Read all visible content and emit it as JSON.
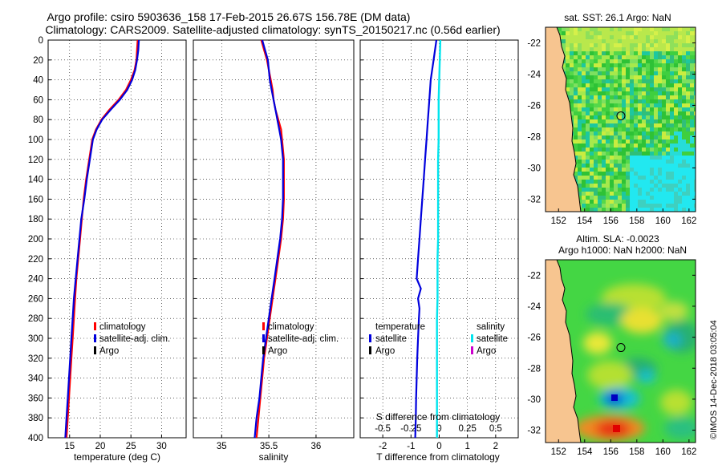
{
  "header": {
    "title_line1": "Argo profile: csiro 5903636_158 17-Feb-2015 26.67S 156.78E (DM data)",
    "title_line2": "Climatology: CARS2009. Satellite-adjusted climatology: synTS_20150217.nc (0.56d earlier)"
  },
  "watermark": "©IMOS 14-Dec-2018 03:05:04",
  "colors": {
    "climatology": "#ff0000",
    "satellite_adj": "#0000dd",
    "argo": "#000000",
    "salinity_satellite": "#00e5ee",
    "salinity_argo": "#cc00cc",
    "land": "#f7c590",
    "coast": "#000000"
  },
  "chart_data": [
    {
      "type": "line",
      "id": "temperature",
      "xlabel": "temperature (deg C)",
      "ylabel": "",
      "xlim": [
        11.5,
        34
      ],
      "ylim": [
        400,
        0
      ],
      "xticks": [
        15,
        20,
        25,
        30
      ],
      "yticks": [
        0,
        20,
        40,
        60,
        80,
        100,
        120,
        140,
        160,
        180,
        200,
        220,
        240,
        260,
        280,
        300,
        320,
        340,
        360,
        380,
        400
      ],
      "legend": [
        "climatology",
        "satellite-adj. clim.",
        "Argo"
      ],
      "legend_location": "right-middle",
      "series": [
        {
          "name": "climatology",
          "depth": [
            0,
            10,
            20,
            30,
            40,
            50,
            60,
            70,
            80,
            90,
            100,
            120,
            140,
            160,
            180,
            200,
            220,
            240,
            260,
            280,
            300,
            320,
            340,
            360,
            380,
            400
          ],
          "values": [
            26.1,
            26.0,
            25.9,
            25.6,
            25.0,
            24.2,
            23.0,
            21.5,
            20.2,
            19.3,
            18.7,
            18.2,
            17.7,
            17.3,
            17.0,
            16.7,
            16.4,
            16.1,
            15.9,
            15.7,
            15.5,
            15.3,
            15.1,
            14.9,
            14.7,
            14.5
          ]
        },
        {
          "name": "satellite-adj. clim.",
          "depth": [
            0,
            10,
            20,
            30,
            40,
            50,
            60,
            70,
            80,
            90,
            100,
            120,
            140,
            160,
            180,
            200,
            220,
            240,
            260,
            280,
            300,
            320,
            340,
            360,
            380,
            400
          ],
          "values": [
            26.3,
            26.2,
            26.0,
            25.7,
            25.2,
            24.4,
            23.2,
            21.7,
            20.3,
            19.4,
            18.8,
            18.3,
            17.8,
            17.4,
            16.9,
            16.6,
            16.3,
            16.0,
            15.7,
            15.5,
            15.3,
            15.1,
            14.9,
            14.7,
            14.5,
            14.3
          ]
        },
        {
          "name": "Argo",
          "depth": [],
          "values": []
        }
      ]
    },
    {
      "type": "line",
      "id": "salinity",
      "xlabel": "salinity",
      "ylabel": "",
      "xlim": [
        34.7,
        36.4
      ],
      "ylim": [
        400,
        0
      ],
      "xticks": [
        35,
        35.5,
        36
      ],
      "legend": [
        "climatology",
        "satellite-adj. clim.",
        "Argo"
      ],
      "legend_location": "right-middle",
      "series": [
        {
          "name": "climatology",
          "depth": [
            0,
            10,
            20,
            30,
            40,
            50,
            60,
            70,
            80,
            90,
            100,
            120,
            140,
            160,
            180,
            200,
            220,
            240,
            260,
            280,
            300,
            320,
            340,
            360,
            380,
            400
          ],
          "values": [
            35.42,
            35.45,
            35.48,
            35.5,
            35.52,
            35.54,
            35.55,
            35.57,
            35.6,
            35.63,
            35.64,
            35.66,
            35.66,
            35.66,
            35.65,
            35.63,
            35.6,
            35.57,
            35.54,
            35.51,
            35.48,
            35.45,
            35.43,
            35.41,
            35.39,
            35.37
          ]
        },
        {
          "name": "satellite-adj. clim.",
          "depth": [
            0,
            10,
            20,
            30,
            40,
            50,
            60,
            70,
            80,
            90,
            100,
            120,
            140,
            160,
            180,
            200,
            220,
            240,
            260,
            280,
            300,
            320,
            340,
            360,
            380,
            400
          ],
          "values": [
            35.43,
            35.46,
            35.49,
            35.5,
            35.51,
            35.53,
            35.55,
            35.57,
            35.59,
            35.61,
            35.63,
            35.65,
            35.65,
            35.65,
            35.64,
            35.62,
            35.59,
            35.56,
            35.53,
            35.5,
            35.47,
            35.44,
            35.42,
            35.4,
            35.37,
            35.35
          ]
        },
        {
          "name": "Argo",
          "depth": [],
          "values": []
        }
      ]
    },
    {
      "type": "line",
      "id": "difference",
      "xlabel": "T difference from climatology",
      "xlabel_top": "S difference from climatology",
      "xlim": [
        -2.8,
        2.8
      ],
      "ylim": [
        400,
        0
      ],
      "xticks": [
        -2,
        -1,
        0,
        1,
        2
      ],
      "xticks_s": [
        "-0.5",
        "-0.25",
        "0",
        "0.25",
        "0.5"
      ],
      "xticks_s_values": [
        -0.5,
        -0.25,
        0,
        0.25,
        0.5
      ],
      "legend_temperature_title": "temperature",
      "legend_salinity_title": "salinity",
      "legend_temperature": [
        "satellite",
        "Argo"
      ],
      "legend_salinity": [
        "satellite",
        "Argo"
      ],
      "series": [
        {
          "name": "T satellite",
          "depth": [
            0,
            20,
            40,
            60,
            80,
            100,
            120,
            140,
            160,
            180,
            200,
            220,
            240,
            250,
            260,
            270,
            280,
            300,
            320,
            340,
            360,
            380,
            400
          ],
          "values": [
            -0.1,
            -0.2,
            -0.3,
            -0.35,
            -0.4,
            -0.45,
            -0.5,
            -0.55,
            -0.6,
            -0.65,
            -0.7,
            -0.75,
            -0.8,
            -0.65,
            -0.75,
            -0.7,
            -0.72,
            -0.75,
            -0.78,
            -0.8,
            -0.82,
            -0.83,
            -0.85
          ]
        },
        {
          "name": "S satellite",
          "depth": [
            0,
            20,
            40,
            60,
            80,
            100,
            120,
            140,
            160,
            180,
            200,
            220,
            240,
            260,
            280,
            300,
            320,
            340,
            360,
            380,
            400
          ],
          "values": [
            0.01,
            0.005,
            0.0,
            -0.005,
            -0.005,
            -0.005,
            -0.01,
            -0.01,
            -0.01,
            -0.01,
            -0.01,
            -0.015,
            -0.015,
            -0.015,
            -0.02,
            -0.02,
            -0.02,
            -0.02,
            -0.02,
            -0.02,
            -0.02
          ]
        }
      ]
    },
    {
      "type": "heatmap",
      "id": "sst_map",
      "title": "sat. SST: 26.1  Argo: NaN",
      "xlim": [
        151,
        162.5
      ],
      "ylim": [
        -32.8,
        -21
      ],
      "xticks": [
        152,
        154,
        156,
        158,
        160,
        162
      ],
      "yticks": [
        -22,
        -24,
        -26,
        -28,
        -30,
        -32
      ],
      "marker": {
        "lon": 156.78,
        "lat": -26.67
      }
    },
    {
      "type": "heatmap",
      "id": "sla_map",
      "title_line1": "Altim. SLA: -0.0023",
      "title_line2": "Argo h1000: NaN h2000: NaN",
      "xlim": [
        151,
        162.5
      ],
      "ylim": [
        -32.8,
        -21
      ],
      "xticks": [
        152,
        154,
        156,
        158,
        160,
        162
      ],
      "yticks": [
        -22,
        -24,
        -26,
        -28,
        -30,
        -32
      ],
      "marker": {
        "lon": 156.78,
        "lat": -26.67
      }
    }
  ]
}
